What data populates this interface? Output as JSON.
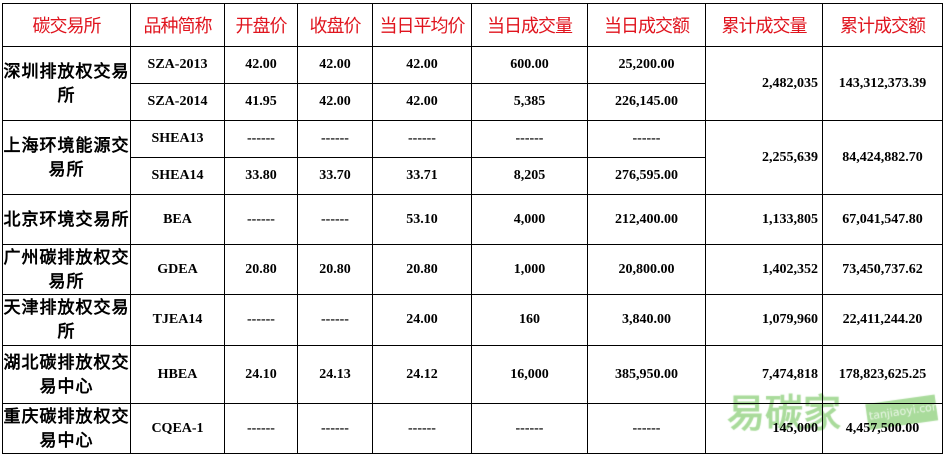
{
  "headers": [
    "碳交易所",
    "品种简称",
    "开盘价",
    "收盘价",
    "当日平均价",
    "当日成交量",
    "当日成交额",
    "累计成交量",
    "累计成交额"
  ],
  "exchanges": [
    {
      "name": "深圳排放权交易所",
      "cum_volume": "2,482,035",
      "cum_amount": "143,312,373.39",
      "rows": [
        [
          "SZA-2013",
          "42.00",
          "42.00",
          "42.00",
          "600.00",
          "25,200.00"
        ],
        [
          "SZA-2014",
          "41.95",
          "42.00",
          "42.00",
          "5,385",
          "226,145.00"
        ]
      ]
    },
    {
      "name": "上海环境能源交易所",
      "cum_volume": "2,255,639",
      "cum_amount": "84,424,882.70",
      "rows": [
        [
          "SHEA13",
          "------",
          "------",
          "------",
          "------",
          "------"
        ],
        [
          "SHEA14",
          "33.80",
          "33.70",
          "33.71",
          "8,205",
          "276,595.00"
        ]
      ]
    },
    {
      "name": "北京环境交易所",
      "cum_volume": "1,133,805",
      "cum_amount": "67,041,547.80",
      "rows": [
        [
          "BEA",
          "------",
          "------",
          "53.10",
          "4,000",
          "212,400.00"
        ]
      ]
    },
    {
      "name": "广州碳排放权交易所",
      "cum_volume": "1,402,352",
      "cum_amount": "73,450,737.62",
      "rows": [
        [
          "GDEA",
          "20.80",
          "20.80",
          "20.80",
          "1,000",
          "20,800.00"
        ]
      ]
    },
    {
      "name": "天津排放权交易所",
      "cum_volume": "1,079,960",
      "cum_amount": "22,411,244.20",
      "rows": [
        [
          "TJEA14",
          "------",
          "------",
          "24.00",
          "160",
          "3,840.00"
        ]
      ]
    },
    {
      "name": "湖北碳排放权交易中心",
      "cum_volume": "7,474,818",
      "cum_amount": "178,823,625.25",
      "rows": [
        [
          "HBEA",
          "24.10",
          "24.13",
          "24.12",
          "16,000",
          "385,950.00"
        ]
      ]
    },
    {
      "name": "重庆碳排放权交易中心",
      "cum_volume": "145,000",
      "cum_amount": "4,457,500.00",
      "rows": [
        [
          "CQEA-1",
          "------",
          "------",
          "------",
          "------",
          "------"
        ]
      ]
    }
  ],
  "watermark": {
    "text": "易碳家",
    "sub": "tanjiaoyi.com"
  }
}
